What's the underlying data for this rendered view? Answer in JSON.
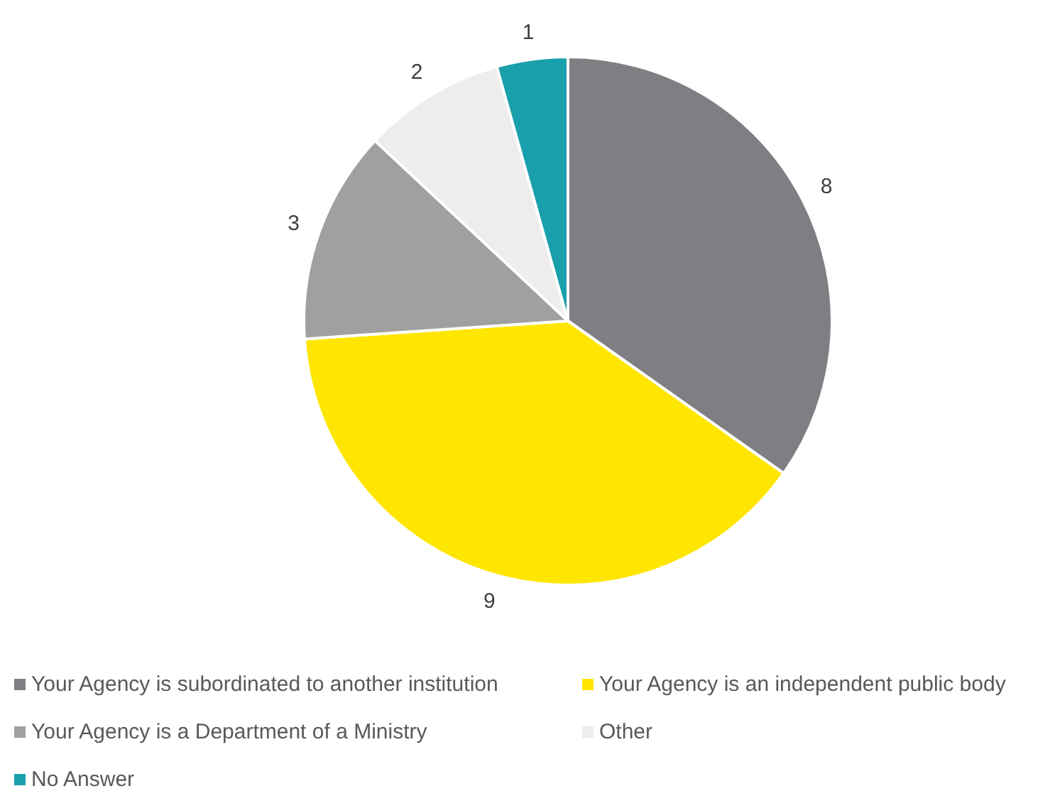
{
  "chart_data": {
    "type": "pie",
    "categories": [
      "Your Agency is subordinated to another institution",
      "Your Agency is an independent public body",
      "Your Agency is a Department of a Ministry",
      "Other",
      "No Answer"
    ],
    "values": [
      8,
      9,
      3,
      2,
      1
    ],
    "colors": [
      "#7f7e83",
      "#ffe600",
      "#a0a0a0",
      "#ededed",
      "#1a9fac"
    ],
    "data_labels": true,
    "legend": "bottom"
  }
}
